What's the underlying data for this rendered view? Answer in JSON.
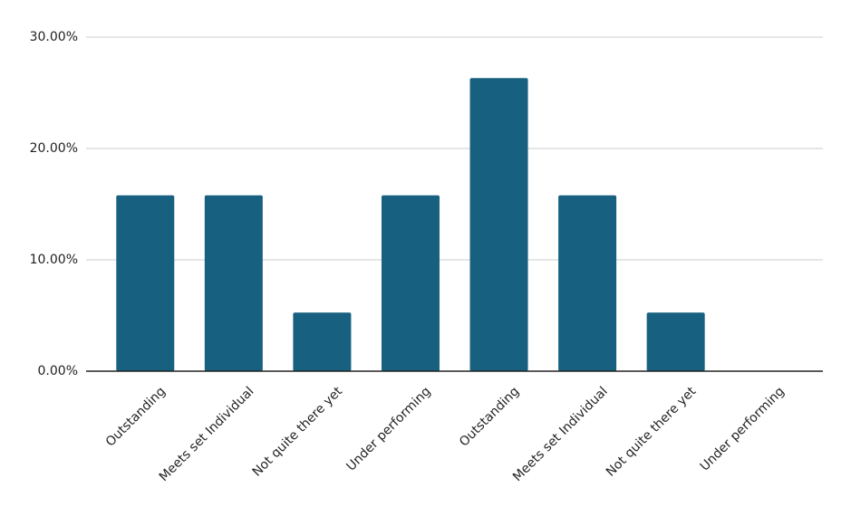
{
  "chart_data": {
    "type": "bar",
    "categories": [
      "Outstanding",
      "Meets set Individual",
      "Not quite there yet",
      "Under performing",
      "Outstanding",
      "Meets set Individual",
      "Not quite there yet",
      "Under performing"
    ],
    "values": [
      15.79,
      15.79,
      5.26,
      15.79,
      26.32,
      15.79,
      5.26,
      0
    ],
    "color": "#17607f",
    "ylim": [
      0,
      30
    ],
    "yticks": [
      {
        "value": 0,
        "label": "0.00%"
      },
      {
        "value": 10,
        "label": "10.00%"
      },
      {
        "value": 20,
        "label": "20.00%"
      },
      {
        "value": 30,
        "label": "30.00%"
      }
    ],
    "grid": true
  }
}
